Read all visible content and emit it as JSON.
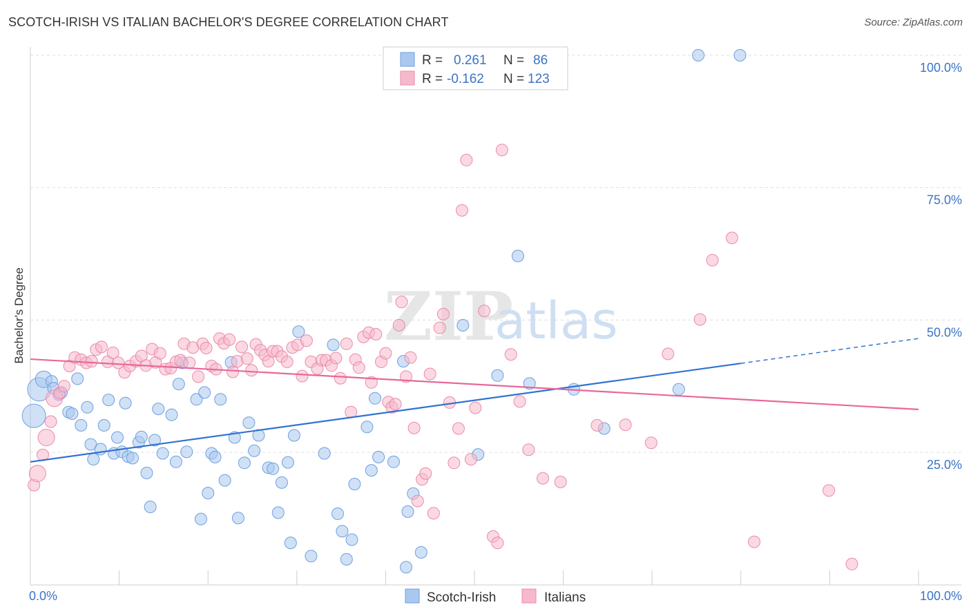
{
  "header": {
    "title": "SCOTCH-IRISH VS ITALIAN BACHELOR'S DEGREE CORRELATION CHART",
    "source": "Source: ZipAtlas.com"
  },
  "watermark": {
    "zip": "ZIP",
    "atlas": "atlas"
  },
  "legend": {
    "rows": [
      {
        "r_label": "R =",
        "r_value": "0.261",
        "n_label": "N =",
        "n_value": "86",
        "color": "#a9c8ef"
      },
      {
        "r_label": "R =",
        "r_value": "-0.162",
        "n_label": "N =",
        "n_value": "123",
        "color": "#f6b9cc"
      }
    ]
  },
  "bottom_legend": [
    {
      "label": "Scotch-Irish",
      "color": "#a9c8ef"
    },
    {
      "label": "Italians",
      "color": "#f6b9cc"
    }
  ],
  "chart_data": {
    "type": "scatter",
    "title": "SCOTCH-IRISH VS ITALIAN BACHELOR'S DEGREE CORRELATION CHART",
    "xlabel": "",
    "ylabel": "Bachelor's Degree",
    "xlim": [
      0,
      100
    ],
    "ylim": [
      0,
      102
    ],
    "x_tick_labels": [
      "0.0%",
      "100.0%"
    ],
    "y_tick_labels": [
      "25.0%",
      "50.0%",
      "75.0%",
      "100.0%"
    ],
    "y_ticks": [
      25,
      50,
      75,
      100
    ],
    "grid": true,
    "legend_position": "top-center",
    "series": [
      {
        "name": "Scotch-Irish",
        "color": "#6e9fe0",
        "fill": "#a9c8ef",
        "trend_color": "#2f72d0",
        "trend": {
          "x0": 0,
          "y0": 23.2,
          "x1": 80,
          "y1": 41.8,
          "dash_to_x": 100,
          "dash_to_y": 46.5
        },
        "points": [
          [
            0.4,
            31.9,
            3
          ],
          [
            1,
            36.9,
            3
          ],
          [
            1.5,
            38.8,
            2
          ],
          [
            2.4,
            38.4,
            1
          ],
          [
            2.6,
            37.1,
            1
          ],
          [
            3.2,
            35.9,
            1
          ],
          [
            3.5,
            36.3,
            1
          ],
          [
            4.3,
            32.6,
            1
          ],
          [
            4.7,
            32.3,
            1
          ],
          [
            5.3,
            38.9,
            1
          ],
          [
            5.7,
            30.1,
            1
          ],
          [
            6.4,
            33.5,
            1
          ],
          [
            6.8,
            26.5,
            1
          ],
          [
            7.1,
            23.7,
            1
          ],
          [
            7.9,
            25.6,
            1
          ],
          [
            8.3,
            30.1,
            1
          ],
          [
            8.8,
            34.9,
            1
          ],
          [
            9.4,
            24.8,
            1
          ],
          [
            9.8,
            27.8,
            1
          ],
          [
            10.3,
            25.1,
            1
          ],
          [
            10.7,
            34.3,
            1
          ],
          [
            11,
            24.2,
            1
          ],
          [
            11.5,
            23.9,
            1
          ],
          [
            12.2,
            26.9,
            1
          ],
          [
            12.5,
            27.9,
            1
          ],
          [
            13.1,
            21.1,
            1
          ],
          [
            13.5,
            14.7,
            1
          ],
          [
            14,
            27.3,
            1
          ],
          [
            14.4,
            33.2,
            1
          ],
          [
            14.9,
            24.8,
            1
          ],
          [
            15.9,
            32.1,
            1
          ],
          [
            16.4,
            23.2,
            1
          ],
          [
            16.7,
            37.9,
            1
          ],
          [
            17.1,
            41.9,
            1
          ],
          [
            17.6,
            25.1,
            1
          ],
          [
            18.7,
            35,
            1
          ],
          [
            19.2,
            12.4,
            1
          ],
          [
            19.6,
            36.3,
            1
          ],
          [
            20,
            17.3,
            1
          ],
          [
            20.4,
            24.8,
            1
          ],
          [
            20.8,
            24.1,
            1
          ],
          [
            21.4,
            35,
            1
          ],
          [
            21.9,
            19.7,
            1
          ],
          [
            22.6,
            42,
            1
          ],
          [
            23,
            27.8,
            1
          ],
          [
            23.4,
            12.6,
            1
          ],
          [
            24.1,
            23,
            1
          ],
          [
            24.6,
            30.6,
            1
          ],
          [
            25.2,
            25.3,
            1
          ],
          [
            25.7,
            28.2,
            1
          ],
          [
            26.8,
            22.1,
            1
          ],
          [
            27.3,
            21.9,
            1
          ],
          [
            27.9,
            13.6,
            1
          ],
          [
            28.3,
            19.3,
            1
          ],
          [
            29,
            23.1,
            1
          ],
          [
            29.3,
            7.9,
            1
          ],
          [
            29.7,
            28.2,
            1
          ],
          [
            30.2,
            47.8,
            1
          ],
          [
            31.6,
            5.4,
            1
          ],
          [
            33.1,
            24.8,
            1
          ],
          [
            34.1,
            45.3,
            1
          ],
          [
            34.6,
            13.4,
            1
          ],
          [
            35.1,
            10.1,
            1
          ],
          [
            35.6,
            4.8,
            1
          ],
          [
            36.2,
            8.5,
            1
          ],
          [
            36.5,
            19,
            1
          ],
          [
            37.9,
            29.8,
            1
          ],
          [
            38.4,
            21.6,
            1
          ],
          [
            38.8,
            35.2,
            1
          ],
          [
            39.2,
            24.1,
            1
          ],
          [
            40.9,
            23.2,
            1
          ],
          [
            42,
            42.2,
            1
          ],
          [
            42.3,
            3.3,
            1
          ],
          [
            42.5,
            13.8,
            1
          ],
          [
            43.1,
            17.2,
            1
          ],
          [
            44,
            6.1,
            1
          ],
          [
            48.7,
            49,
            1
          ],
          [
            50.4,
            24.6,
            1
          ],
          [
            52.6,
            39.5,
            1
          ],
          [
            54.9,
            62.1,
            1
          ],
          [
            56.2,
            38,
            1
          ],
          [
            61.2,
            36.9,
            1
          ],
          [
            64.6,
            29.5,
            1
          ],
          [
            73,
            36.9,
            1
          ],
          [
            75.2,
            100,
            1
          ],
          [
            79.9,
            100,
            1
          ]
        ]
      },
      {
        "name": "Italians",
        "color": "#ec8aa8",
        "fill": "#f6b9cc",
        "trend_color": "#e8679a",
        "trend": {
          "x0": 0,
          "y0": 42.6,
          "x1": 100,
          "y1": 33.1
        },
        "points": [
          [
            0.4,
            18.8,
            1
          ],
          [
            0.8,
            21,
            2
          ],
          [
            1.4,
            24.5,
            1
          ],
          [
            1.8,
            27.8,
            2
          ],
          [
            2.3,
            30.8,
            1
          ],
          [
            2.7,
            35.2,
            2
          ],
          [
            3.3,
            36.2,
            1
          ],
          [
            3.8,
            37.5,
            1
          ],
          [
            4.4,
            41.3,
            1
          ],
          [
            5,
            42.9,
            1
          ],
          [
            5.7,
            42.5,
            1
          ],
          [
            6.3,
            41.9,
            1
          ],
          [
            6.9,
            42.2,
            1
          ],
          [
            7.4,
            44.4,
            1
          ],
          [
            8,
            44.9,
            1
          ],
          [
            8.7,
            42.1,
            1
          ],
          [
            9.3,
            43.8,
            1
          ],
          [
            9.9,
            41.9,
            1
          ],
          [
            10.6,
            40.1,
            1
          ],
          [
            11.2,
            41.3,
            1
          ],
          [
            11.9,
            42.2,
            1
          ],
          [
            12.5,
            43.2,
            1
          ],
          [
            13,
            41.4,
            1
          ],
          [
            13.7,
            44.5,
            1
          ],
          [
            14.1,
            42,
            1
          ],
          [
            14.6,
            43.7,
            1
          ],
          [
            15.2,
            40.7,
            1
          ],
          [
            15.8,
            40.9,
            1
          ],
          [
            16.4,
            42.1,
            1
          ],
          [
            16.9,
            42.4,
            1
          ],
          [
            17.3,
            45.5,
            1
          ],
          [
            17.9,
            41.9,
            1
          ],
          [
            18.3,
            44.8,
            1
          ],
          [
            18.9,
            39.3,
            1
          ],
          [
            19.4,
            45.5,
            1
          ],
          [
            19.8,
            44.7,
            1
          ],
          [
            20.4,
            41.3,
            1
          ],
          [
            20.9,
            40.7,
            1
          ],
          [
            21.3,
            46.5,
            1
          ],
          [
            21.8,
            45.6,
            1
          ],
          [
            22.4,
            46.3,
            1
          ],
          [
            22.8,
            40.2,
            1
          ],
          [
            23.3,
            42.2,
            1
          ],
          [
            23.8,
            44.9,
            1
          ],
          [
            24.4,
            42.7,
            1
          ],
          [
            24.9,
            40.5,
            1
          ],
          [
            25.4,
            45.4,
            1
          ],
          [
            25.9,
            44.3,
            1
          ],
          [
            26.4,
            43.4,
            1
          ],
          [
            26.8,
            42.2,
            1
          ],
          [
            27.3,
            44.1,
            1
          ],
          [
            27.8,
            44.1,
            1
          ],
          [
            28.3,
            43.1,
            1
          ],
          [
            28.9,
            42.1,
            1
          ],
          [
            29.5,
            44.8,
            1
          ],
          [
            30.1,
            45.3,
            1
          ],
          [
            30.6,
            39.4,
            1
          ],
          [
            31.1,
            46.1,
            1
          ],
          [
            31.6,
            42.1,
            1
          ],
          [
            32.3,
            40.8,
            1
          ],
          [
            32.8,
            42.4,
            1
          ],
          [
            33.3,
            42.4,
            1
          ],
          [
            33.9,
            41.4,
            1
          ],
          [
            34.4,
            42.8,
            1
          ],
          [
            34.9,
            39,
            1
          ],
          [
            35.6,
            45.5,
            1
          ],
          [
            36.1,
            32.6,
            1
          ],
          [
            36.6,
            42.5,
            1
          ],
          [
            37,
            41,
            1
          ],
          [
            37.5,
            46.8,
            1
          ],
          [
            38.1,
            47.6,
            1
          ],
          [
            38.4,
            38.2,
            1
          ],
          [
            38.9,
            47.3,
            1
          ],
          [
            39.5,
            42.1,
            1
          ],
          [
            40,
            43.7,
            1
          ],
          [
            40.3,
            34.5,
            1
          ],
          [
            40.7,
            33.5,
            1
          ],
          [
            41.1,
            34.1,
            1
          ],
          [
            41.5,
            49,
            1
          ],
          [
            41.8,
            53.4,
            1
          ],
          [
            42.3,
            39.3,
            1
          ],
          [
            42.8,
            42.9,
            1
          ],
          [
            43.2,
            29.6,
            1
          ],
          [
            43.6,
            15.8,
            1
          ],
          [
            44.1,
            19.9,
            1
          ],
          [
            44.5,
            21,
            1
          ],
          [
            45,
            39.8,
            1
          ],
          [
            45.4,
            13.5,
            1
          ],
          [
            46.1,
            48.5,
            1
          ],
          [
            46.5,
            51.1,
            1
          ],
          [
            47.2,
            34.4,
            1
          ],
          [
            47.7,
            23,
            1
          ],
          [
            48.2,
            29.5,
            1
          ],
          [
            48.6,
            70.7,
            1
          ],
          [
            49.1,
            80.2,
            1
          ],
          [
            49.6,
            23.7,
            1
          ],
          [
            50.1,
            33.4,
            1
          ],
          [
            51.1,
            51.7,
            1
          ],
          [
            52.1,
            9.1,
            1
          ],
          [
            52.6,
            7.9,
            1
          ],
          [
            53.1,
            82.1,
            1
          ],
          [
            54.1,
            43.5,
            1
          ],
          [
            55.1,
            34.6,
            1
          ],
          [
            56.1,
            25.5,
            1
          ],
          [
            57.7,
            20.1,
            1
          ],
          [
            59.7,
            19.4,
            1
          ],
          [
            63.8,
            30.1,
            1
          ],
          [
            67,
            30.2,
            1
          ],
          [
            69.9,
            26.8,
            1
          ],
          [
            71.8,
            43.6,
            1
          ],
          [
            75.4,
            50.1,
            1
          ],
          [
            76.8,
            61.3,
            1
          ],
          [
            79,
            65.5,
            1
          ],
          [
            81.5,
            8.1,
            1
          ],
          [
            89.9,
            17.8,
            1
          ],
          [
            92.5,
            3.9,
            1
          ]
        ]
      }
    ]
  }
}
